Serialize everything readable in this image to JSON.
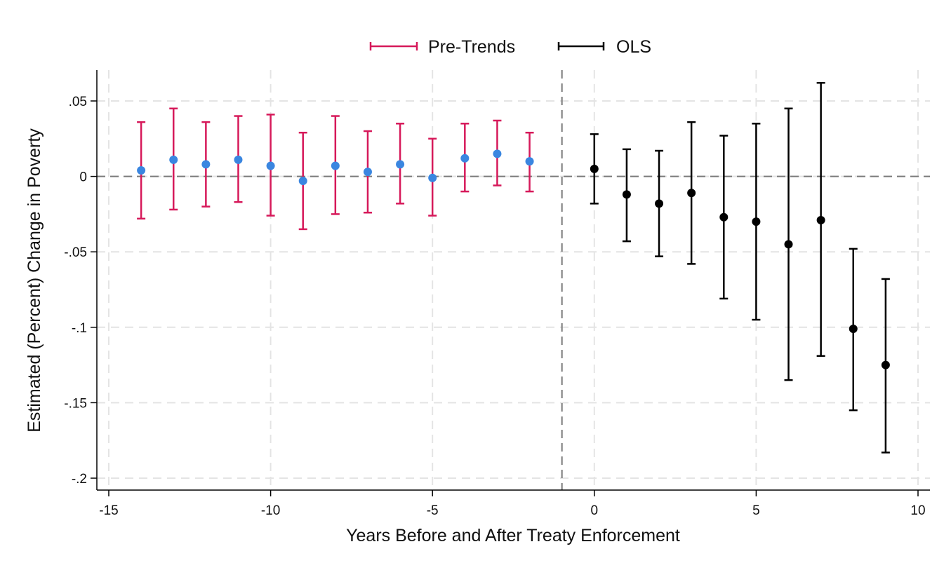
{
  "chart_data": {
    "type": "scatter",
    "xlabel": "Years Before and After Treaty Enforcement",
    "ylabel": "Estimated (Percent) Change in Poverty",
    "xlim": [
      -15,
      10
    ],
    "ylim": [
      -0.2,
      0.05
    ],
    "x_ticks": [
      -15,
      -10,
      -5,
      0,
      5,
      10
    ],
    "x_tick_labels": [
      "-15",
      "-10",
      "-5",
      "0",
      "5",
      "10"
    ],
    "y_ticks": [
      0.05,
      0,
      -0.05,
      -0.1,
      -0.15,
      -0.2
    ],
    "y_tick_labels": [
      ".05",
      "0",
      "-.05",
      "-.1",
      "-.15",
      "-.2"
    ],
    "grid": true,
    "reference_lines": {
      "horizontal_y": 0,
      "vertical_x": -1
    },
    "legend": {
      "placement": "top-center"
    },
    "series": [
      {
        "name": "Pre-Trends",
        "bar_color": "#d6195a",
        "point_color": "#3a86e0",
        "x": [
          -14,
          -13,
          -12,
          -11,
          -10,
          -9,
          -8,
          -7,
          -6,
          -5,
          -4,
          -3,
          -2
        ],
        "y": [
          0.004,
          0.011,
          0.008,
          0.011,
          0.007,
          -0.003,
          0.007,
          0.003,
          0.008,
          -0.001,
          0.012,
          0.015,
          0.01
        ],
        "ci_low": [
          -0.028,
          -0.022,
          -0.02,
          -0.017,
          -0.026,
          -0.035,
          -0.025,
          -0.024,
          -0.018,
          -0.026,
          -0.01,
          -0.006,
          -0.01
        ],
        "ci_high": [
          0.036,
          0.045,
          0.036,
          0.04,
          0.041,
          0.029,
          0.04,
          0.03,
          0.035,
          0.025,
          0.035,
          0.037,
          0.029
        ]
      },
      {
        "name": "OLS",
        "bar_color": "#000000",
        "point_color": "#000000",
        "x": [
          0,
          1,
          2,
          3,
          4,
          5,
          6,
          7,
          8,
          9
        ],
        "y": [
          0.005,
          -0.012,
          -0.018,
          -0.011,
          -0.027,
          -0.03,
          -0.045,
          -0.029,
          -0.101,
          -0.125
        ],
        "ci_low": [
          -0.018,
          -0.043,
          -0.053,
          -0.058,
          -0.081,
          -0.095,
          -0.135,
          -0.119,
          -0.155,
          -0.183
        ],
        "ci_high": [
          0.028,
          0.018,
          0.017,
          0.036,
          0.027,
          0.035,
          0.045,
          0.062,
          -0.048,
          -0.068
        ]
      }
    ]
  }
}
